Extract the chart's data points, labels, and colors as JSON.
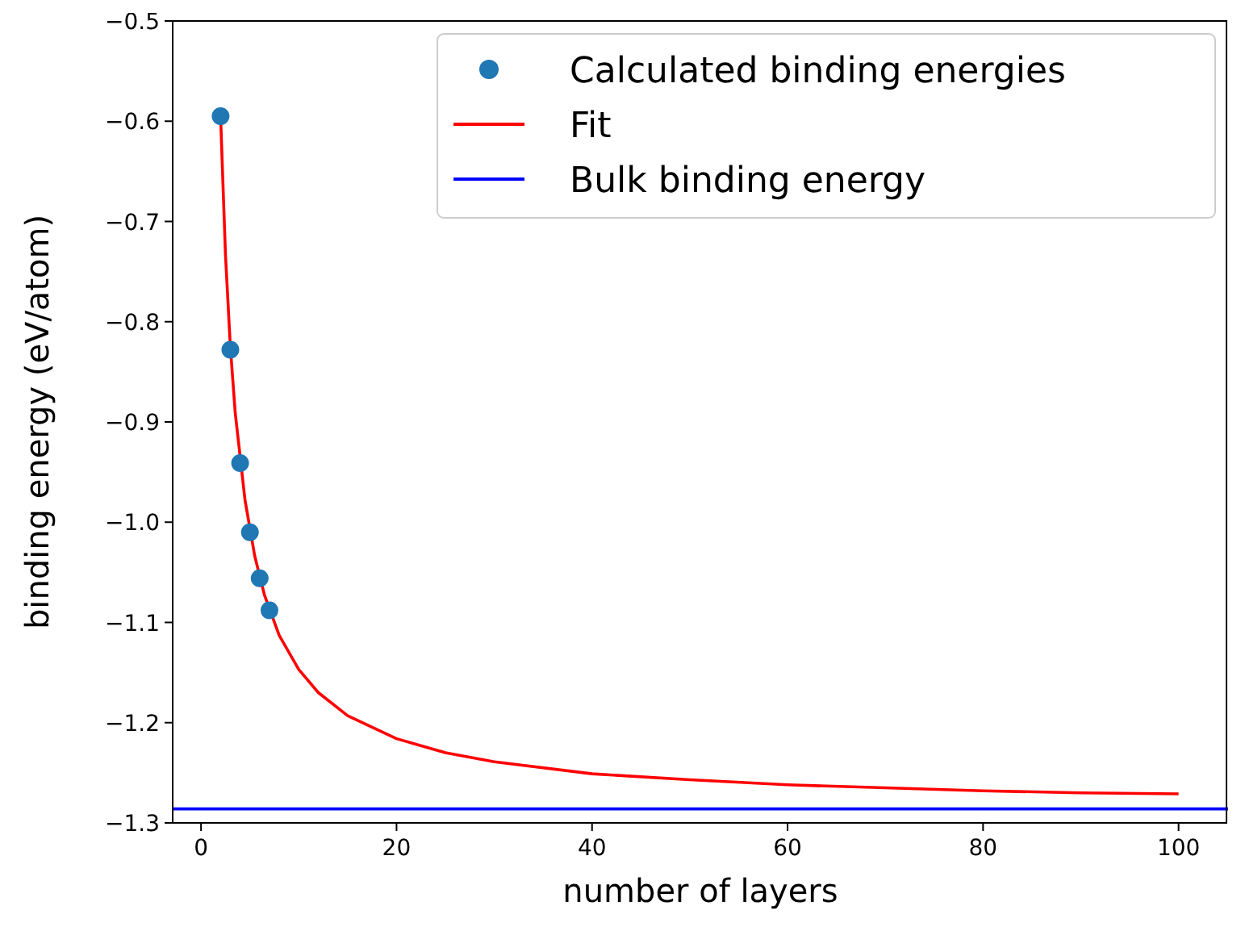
{
  "chart_data": {
    "type": "scatter",
    "xlabel": "number of layers",
    "ylabel": "binding energy (eV/atom)",
    "xlim": [
      -2.9,
      104.9
    ],
    "ylim": [
      -1.3,
      -0.5
    ],
    "xticks": [
      0,
      20,
      40,
      60,
      80,
      100
    ],
    "yticks": [
      -1.3,
      -1.2,
      -1.1,
      {
        "value": -1.0,
        "label": "−1.0"
      },
      -0.9,
      -0.8,
      -0.7,
      -0.6,
      -0.5
    ],
    "series": [
      {
        "name": "Calculated binding energies",
        "color": "#1f77b4",
        "marker": "circle",
        "x": [
          2,
          3,
          4,
          5,
          6,
          7
        ],
        "values": [
          -0.595,
          -0.828,
          -0.941,
          -1.01,
          -1.056,
          -1.088
        ]
      },
      {
        "name": "Fit",
        "type": "line",
        "color": "#ff0000",
        "marker": "none",
        "x": [
          2,
          2.5,
          3,
          3.5,
          4.5,
          5.5,
          6.5,
          8,
          10,
          12,
          15,
          20,
          25,
          30,
          40,
          50,
          60,
          70,
          80,
          90,
          100
        ],
        "values": [
          -0.595,
          -0.733,
          -0.825,
          -0.891,
          -0.978,
          -1.034,
          -1.073,
          -1.113,
          -1.147,
          -1.17,
          -1.193,
          -1.216,
          -1.23,
          -1.239,
          -1.251,
          -1.257,
          -1.262,
          -1.265,
          -1.268,
          -1.27,
          -1.271
        ]
      }
    ],
    "ref_lines": [
      {
        "axis": "y",
        "value": -1.286,
        "label": "Bulk binding energy",
        "color": "#0000ff"
      }
    ],
    "legend": "top right",
    "grid": false
  }
}
